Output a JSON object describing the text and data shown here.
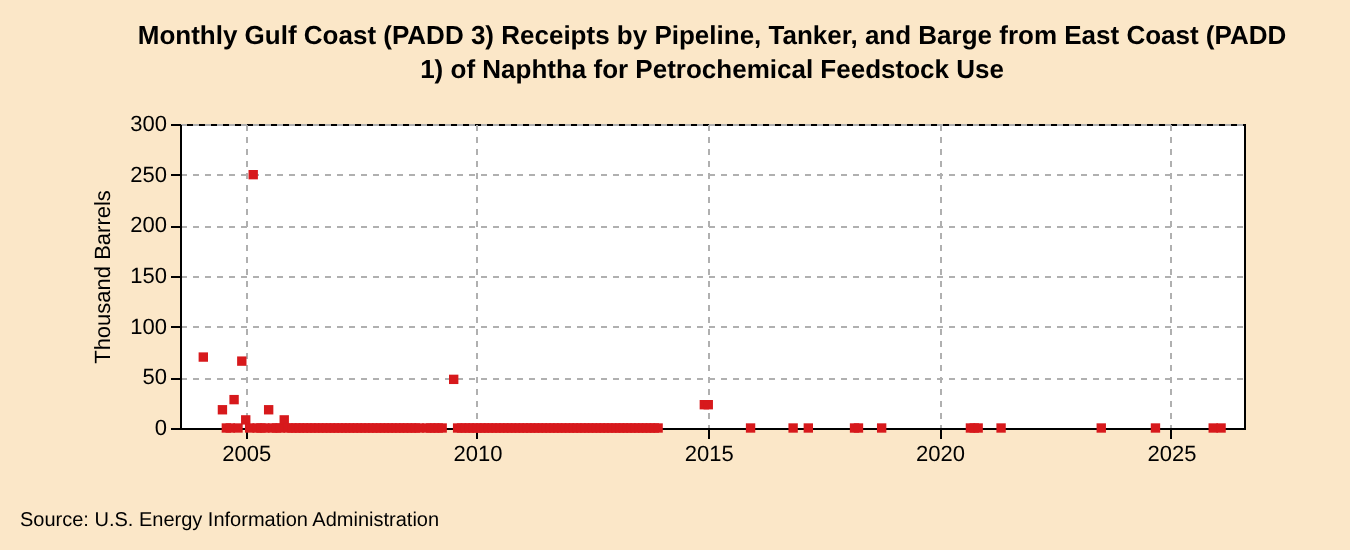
{
  "chart_data": {
    "type": "scatter",
    "title": "Monthly Gulf Coast (PADD 3) Receipts by Pipeline, Tanker, and Barge from East Coast (PADD 1) of Naphtha for Petrochemical Feedstock Use",
    "ylabel": "Thousand Barrels",
    "annotations": [
      "Source: U.S. Energy Information Administration"
    ],
    "x": [
      "2004-02",
      "2004-07",
      "2004-08",
      "2004-09",
      "2004-10",
      "2004-11",
      "2004-12",
      "2005-01",
      "2005-02",
      "2005-03",
      "2005-04",
      "2005-05",
      "2005-06",
      "2005-07",
      "2005-08",
      "2005-09",
      "2005-10",
      "2005-11",
      "2005-12",
      "2006-01",
      "2006-02",
      "2006-03",
      "2006-04",
      "2006-05",
      "2006-06",
      "2006-07",
      "2006-08",
      "2006-09",
      "2006-10",
      "2006-11",
      "2006-12",
      "2007-01",
      "2007-02",
      "2007-03",
      "2007-04",
      "2007-05",
      "2007-06",
      "2007-07",
      "2007-08",
      "2007-09",
      "2007-10",
      "2007-11",
      "2007-12",
      "2008-01",
      "2008-02",
      "2008-03",
      "2008-04",
      "2008-05",
      "2008-06",
      "2008-07",
      "2008-08",
      "2008-09",
      "2008-10",
      "2008-12",
      "2009-01",
      "2009-02",
      "2009-03",
      "2009-04",
      "2009-07",
      "2009-08",
      "2009-09",
      "2009-10",
      "2009-11",
      "2009-12",
      "2010-01",
      "2010-02",
      "2010-03",
      "2010-04",
      "2010-05",
      "2010-06",
      "2010-07",
      "2010-08",
      "2010-09",
      "2010-10",
      "2010-11",
      "2010-12",
      "2011-01",
      "2011-02",
      "2011-03",
      "2011-04",
      "2011-05",
      "2011-06",
      "2011-07",
      "2011-08",
      "2011-09",
      "2011-10",
      "2011-11",
      "2011-12",
      "2012-01",
      "2012-02",
      "2012-03",
      "2012-04",
      "2012-05",
      "2012-06",
      "2012-07",
      "2012-08",
      "2012-09",
      "2012-10",
      "2012-11",
      "2012-12",
      "2013-01",
      "2013-02",
      "2013-03",
      "2013-04",
      "2013-05",
      "2013-06",
      "2013-07",
      "2013-08",
      "2013-09",
      "2013-10",
      "2013-11",
      "2013-12",
      "2014-12",
      "2015-01",
      "2015-12",
      "2016-11",
      "2017-03",
      "2018-03",
      "2018-04",
      "2018-10",
      "2020-09",
      "2020-10",
      "2020-11",
      "2021-05",
      "2023-07",
      "2024-09",
      "2025-12",
      "2026-02"
    ],
    "series": [
      {
        "color": "#d7191c",
        "values": [
          70,
          18,
          0,
          0,
          28,
          0,
          66,
          8,
          0,
          250,
          0,
          0,
          0,
          18,
          0,
          0,
          0,
          8,
          0,
          0,
          0,
          0,
          0,
          0,
          0,
          0,
          0,
          0,
          0,
          0,
          0,
          0,
          0,
          0,
          0,
          0,
          0,
          0,
          0,
          0,
          0,
          0,
          0,
          0,
          0,
          0,
          0,
          0,
          0,
          0,
          0,
          0,
          0,
          0,
          0,
          0,
          0,
          0,
          48,
          0,
          0,
          0,
          0,
          0,
          0,
          0,
          0,
          0,
          0,
          0,
          0,
          0,
          0,
          0,
          0,
          0,
          0,
          0,
          0,
          0,
          0,
          0,
          0,
          0,
          0,
          0,
          0,
          0,
          0,
          0,
          0,
          0,
          0,
          0,
          0,
          0,
          0,
          0,
          0,
          0,
          0,
          0,
          0,
          0,
          0,
          0,
          0,
          0,
          0,
          0,
          0,
          0,
          23,
          23,
          0,
          0,
          0,
          0,
          0,
          0,
          0,
          0,
          0,
          0,
          0,
          0,
          0,
          0
        ]
      }
    ],
    "xlim": [
      "2003-08",
      "2026-08"
    ],
    "xticks": [
      {
        "value": "2005",
        "label": "2005"
      },
      {
        "value": "2010",
        "label": "2010"
      },
      {
        "value": "2015",
        "label": "2015"
      },
      {
        "value": "2020",
        "label": "2020"
      },
      {
        "value": "2025",
        "label": "2025"
      }
    ],
    "ylim": [
      0,
      300
    ],
    "yticks": [
      0,
      50,
      100,
      150,
      200,
      250,
      300
    ],
    "grid": true,
    "marker": "square",
    "legend": false
  }
}
